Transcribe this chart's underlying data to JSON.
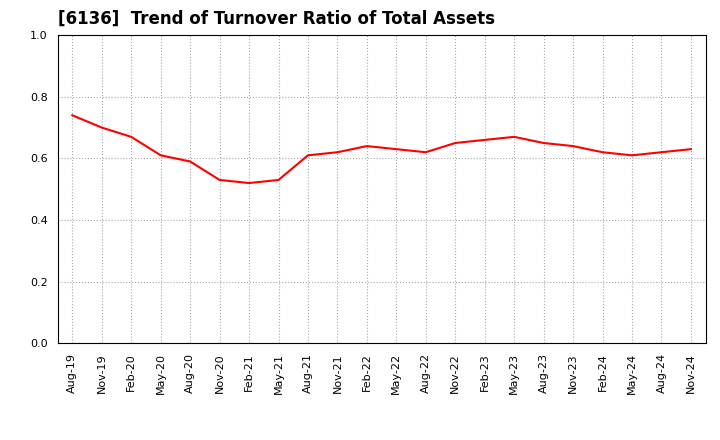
{
  "title": "[6136]  Trend of Turnover Ratio of Total Assets",
  "x_labels": [
    "Aug-19",
    "Nov-19",
    "Feb-20",
    "May-20",
    "Aug-20",
    "Nov-20",
    "Feb-21",
    "May-21",
    "Aug-21",
    "Nov-21",
    "Feb-22",
    "May-22",
    "Aug-22",
    "Nov-22",
    "Feb-23",
    "May-23",
    "Aug-23",
    "Nov-23",
    "Feb-24",
    "May-24",
    "Aug-24",
    "Nov-24"
  ],
  "y_values": [
    0.74,
    0.7,
    0.67,
    0.61,
    0.59,
    0.53,
    0.52,
    0.53,
    0.61,
    0.62,
    0.64,
    0.63,
    0.62,
    0.65,
    0.66,
    0.67,
    0.65,
    0.64,
    0.62,
    0.61,
    0.62,
    0.63
  ],
  "line_color": "#FF0000",
  "line_width": 1.5,
  "ylim": [
    0.0,
    1.0
  ],
  "yticks": [
    0.0,
    0.2,
    0.4,
    0.6,
    0.8,
    1.0
  ],
  "grid_color": "#aaaaaa",
  "grid_style": "dotted",
  "background_color": "#ffffff",
  "title_fontsize": 12,
  "tick_fontsize": 8
}
